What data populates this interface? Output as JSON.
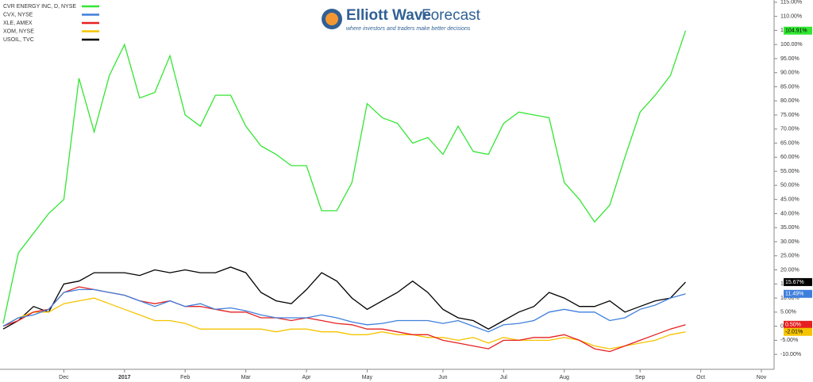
{
  "chart_data": {
    "type": "line",
    "watermark": {
      "brand": "Elliott Wave",
      "brand2": "Forecast",
      "tagline": "where investors and traders make better decisions"
    },
    "categories": [
      null,
      null,
      null,
      null,
      "Dec",
      null,
      null,
      null,
      "2017",
      null,
      null,
      null,
      "Feb",
      null,
      null,
      null,
      "Mar",
      null,
      null,
      null,
      "Apr",
      null,
      null,
      null,
      "May",
      null,
      null,
      null,
      null,
      "Jun",
      null,
      null,
      null,
      "Jul",
      null,
      null,
      null,
      "Aug",
      null,
      null,
      null,
      null,
      "Sep",
      null,
      null,
      null,
      "Oct",
      null,
      null,
      null,
      "Nov"
    ],
    "series": [
      {
        "name": "CVR ENERGY INC, D, NYSE",
        "color": "#33e633",
        "label_text": "#000",
        "values": [
          1,
          26,
          33,
          40,
          45,
          88,
          69,
          89,
          100,
          81,
          83,
          96,
          75,
          71,
          82,
          82,
          71,
          64,
          61,
          57,
          57,
          41,
          41,
          51,
          79,
          74,
          72,
          65,
          67,
          61,
          71,
          62,
          61,
          72,
          76,
          75,
          74,
          51,
          45,
          37,
          43,
          60,
          76,
          82,
          89,
          104.91,
          null,
          null,
          null,
          null,
          null
        ],
        "value_labels": [
          null,
          null,
          null,
          null,
          null,
          null,
          null,
          null,
          null,
          null,
          null,
          null,
          null,
          null,
          null,
          null,
          null,
          null,
          null,
          null,
          null,
          null,
          null,
          null,
          null,
          null,
          null,
          null,
          null,
          null,
          null,
          null,
          null,
          null,
          null,
          null,
          null,
          null,
          null,
          null,
          null,
          null,
          null,
          null,
          null,
          "104.91%",
          null,
          null,
          null,
          null,
          null
        ]
      },
      {
        "name": "CVX, NYSE",
        "color": "#3f7fdc",
        "label_text": "#fff",
        "values": [
          0,
          3,
          4,
          6,
          12,
          13,
          13,
          12,
          11,
          9,
          7,
          9,
          7,
          8,
          6,
          6.5,
          5.5,
          4,
          3,
          3,
          3,
          4,
          3,
          1.5,
          0.5,
          1,
          2,
          2,
          2,
          1,
          2,
          0,
          -2,
          0.5,
          1,
          2,
          5,
          6,
          5,
          5,
          2,
          3,
          6,
          7.5,
          10,
          11.49,
          null,
          null,
          null,
          null,
          null
        ],
        "value_labels": [
          null,
          null,
          null,
          null,
          null,
          null,
          null,
          null,
          null,
          null,
          null,
          null,
          null,
          null,
          null,
          null,
          null,
          null,
          null,
          null,
          null,
          null,
          null,
          null,
          null,
          null,
          null,
          null,
          null,
          null,
          null,
          null,
          null,
          null,
          null,
          null,
          null,
          null,
          null,
          null,
          null,
          null,
          null,
          null,
          null,
          "11.49%",
          null,
          null,
          null,
          null,
          null
        ]
      },
      {
        "name": "XLE, AMEX",
        "color": "#e62020",
        "label_text": "#fff",
        "values": [
          0,
          2,
          5,
          6,
          12,
          14,
          13,
          12,
          11,
          9,
          8,
          9,
          7,
          7,
          6,
          5,
          5,
          3,
          3,
          2,
          3,
          2,
          1,
          0.5,
          -1,
          -1,
          -2,
          -3,
          -3,
          -5,
          -6,
          -7,
          -8,
          -5,
          -5,
          -4,
          -4,
          -3,
          -5,
          -8,
          -9,
          -7,
          -5,
          -3,
          -1,
          0.5,
          null,
          null,
          null,
          null,
          null
        ],
        "value_labels": [
          null,
          null,
          null,
          null,
          null,
          null,
          null,
          null,
          null,
          null,
          null,
          null,
          null,
          null,
          null,
          null,
          null,
          null,
          null,
          null,
          null,
          null,
          null,
          null,
          null,
          null,
          null,
          null,
          null,
          null,
          null,
          null,
          null,
          null,
          null,
          null,
          null,
          null,
          null,
          null,
          null,
          null,
          null,
          null,
          null,
          "0.50%",
          null,
          null,
          null,
          null,
          null
        ]
      },
      {
        "name": "XOM, NYSE",
        "color": "#f5c400",
        "label_text": "#000",
        "values": [
          0,
          3,
          5,
          5,
          8,
          9,
          10,
          8,
          6,
          4,
          2,
          2,
          1,
          -1,
          -1,
          -1,
          -1,
          -1,
          -2,
          -1,
          -1,
          -2,
          -2,
          -3,
          -3,
          -2,
          -3,
          -3,
          -4,
          -4,
          -5,
          -4,
          -6,
          -4,
          -5,
          -5,
          -5,
          -4,
          -5,
          -7,
          -8,
          -7,
          -6,
          -5,
          -3,
          -2.01,
          null,
          null,
          null,
          null,
          null
        ],
        "value_labels": [
          null,
          null,
          null,
          null,
          null,
          null,
          null,
          null,
          null,
          null,
          null,
          null,
          null,
          null,
          null,
          null,
          null,
          null,
          null,
          null,
          null,
          null,
          null,
          null,
          null,
          null,
          null,
          null,
          null,
          null,
          null,
          null,
          null,
          null,
          null,
          null,
          null,
          null,
          null,
          null,
          null,
          null,
          null,
          null,
          null,
          "-2.01%",
          null,
          null,
          null,
          null,
          null
        ]
      },
      {
        "name": "USOIL, TVC",
        "color": "#000000",
        "label_text": "#fff",
        "values": [
          -1,
          2,
          7,
          5,
          15,
          16,
          19,
          19,
          19,
          18,
          20,
          19,
          20,
          19,
          19,
          21,
          19,
          12,
          9,
          8,
          13,
          19,
          16,
          10,
          6,
          9,
          12,
          16,
          12,
          6,
          3,
          2,
          -1,
          2,
          5,
          7,
          12,
          10,
          7,
          7,
          9,
          5,
          7,
          9,
          10,
          15.67,
          null,
          null,
          null,
          null,
          null
        ],
        "value_labels": [
          null,
          null,
          null,
          null,
          null,
          null,
          null,
          null,
          null,
          null,
          null,
          null,
          null,
          null,
          null,
          null,
          null,
          null,
          null,
          null,
          null,
          null,
          null,
          null,
          null,
          null,
          null,
          null,
          null,
          null,
          null,
          null,
          null,
          null,
          null,
          null,
          null,
          null,
          null,
          null,
          null,
          null,
          null,
          null,
          null,
          "15.67%",
          null,
          null,
          null,
          null,
          null
        ]
      }
    ],
    "ylim": [
      -15.3,
      115.8
    ],
    "yticks": [
      {
        "value": 115,
        "label": "115.00%"
      },
      {
        "value": 110,
        "label": "110.00%"
      },
      {
        "value": 105,
        "label": "105.00%"
      },
      {
        "value": 100,
        "label": "100.00%"
      },
      {
        "value": 95,
        "label": "95.00%"
      },
      {
        "value": 90,
        "label": "90.00%"
      },
      {
        "value": 85,
        "label": "85.00%"
      },
      {
        "value": 80,
        "label": "80.00%"
      },
      {
        "value": 75,
        "label": "75.00%"
      },
      {
        "value": 70,
        "label": "70.00%"
      },
      {
        "value": 65,
        "label": "65.00%"
      },
      {
        "value": 60,
        "label": "60.00%"
      },
      {
        "value": 55,
        "label": "55.00%"
      },
      {
        "value": 50,
        "label": "50.00%"
      },
      {
        "value": 45,
        "label": "45.00%"
      },
      {
        "value": 40,
        "label": "40.00%"
      },
      {
        "value": 35,
        "label": "35.00%"
      },
      {
        "value": 30,
        "label": "30.00%"
      },
      {
        "value": 25,
        "label": "25.00%"
      },
      {
        "value": 20,
        "label": "20.00%"
      },
      {
        "value": 15,
        "label": "15.00%"
      },
      {
        "value": 10,
        "label": "10.00%"
      },
      {
        "value": 5,
        "label": "5.00%"
      },
      {
        "value": 0,
        "label": "0.00%"
      },
      {
        "value": -5,
        "label": "-5.00%"
      },
      {
        "value": -10,
        "label": "-10.00%"
      }
    ],
    "grid": false
  }
}
